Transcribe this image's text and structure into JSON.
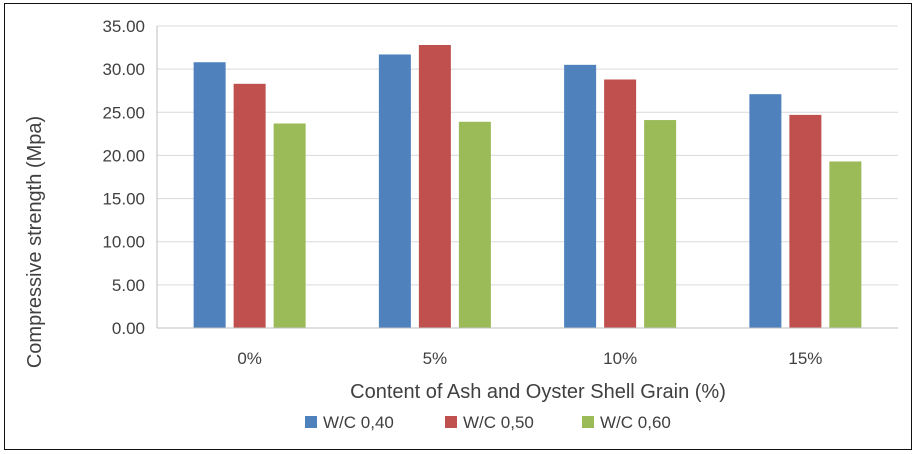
{
  "chart_data": {
    "type": "bar",
    "title": "",
    "xlabel": "Content of Ash and Oyster Shell Grain (%)",
    "ylabel": "Compressive strength (Mpa)",
    "categories": [
      "0%",
      "5%",
      "10%",
      "15%"
    ],
    "yticks": [
      "0.00",
      "5.00",
      "10.00",
      "15.00",
      "20.00",
      "25.00",
      "30.00",
      "35.00"
    ],
    "ylim": [
      0,
      35
    ],
    "grid": true,
    "legend_position": "bottom",
    "series": [
      {
        "name": "W/C 0,40",
        "color": "#4F81BD",
        "values": [
          30.8,
          31.7,
          30.5,
          27.1
        ]
      },
      {
        "name": "W/C 0,50",
        "color": "#C0504D",
        "values": [
          28.3,
          32.8,
          28.8,
          24.7
        ]
      },
      {
        "name": "W/C 0,60",
        "color": "#9BBB59",
        "values": [
          23.7,
          23.9,
          24.1,
          19.3
        ]
      }
    ]
  }
}
